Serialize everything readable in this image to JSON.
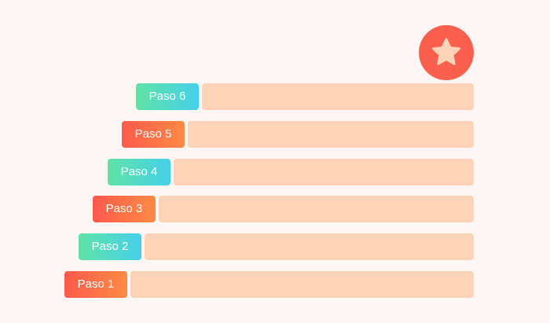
{
  "steps": [
    {
      "label": "Paso 1",
      "color": "orange"
    },
    {
      "label": "Paso 2",
      "color": "teal"
    },
    {
      "label": "Paso 3",
      "color": "orange"
    },
    {
      "label": "Paso 4",
      "color": "teal"
    },
    {
      "label": "Paso 5",
      "color": "orange"
    },
    {
      "label": "Paso 6",
      "color": "teal"
    }
  ],
  "colors": {
    "background": "#fcf7f4",
    "bar": "#ffd3b7",
    "badge": "#fb5f4e",
    "star": "#ffd3b7"
  },
  "badge_icon": "star-icon"
}
